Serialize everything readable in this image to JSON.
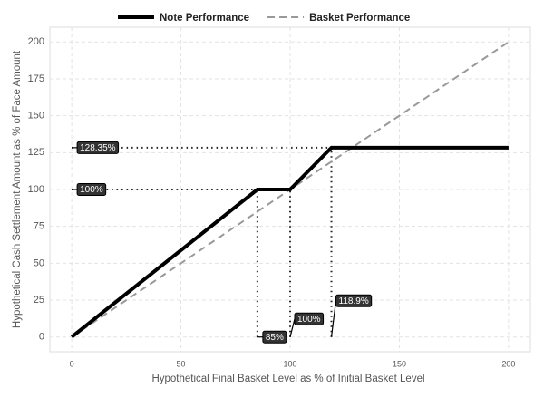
{
  "chart_data": {
    "type": "line",
    "xlabel": "Hypothetical Final Basket Level as % of Initial Basket Level",
    "ylabel": "Hypothetical Cash Settlement Amount as % of Face Amount",
    "series": [
      {
        "name": "Note Performance",
        "color": "#000000",
        "style": "solid",
        "x": [
          0,
          85,
          100,
          118.9,
          200
        ],
        "values": [
          0,
          100,
          100,
          128.35,
          128.35
        ]
      },
      {
        "name": "Basket Performance",
        "color": "#999999",
        "style": "dashed",
        "x": [
          0,
          200
        ],
        "values": [
          0,
          200
        ]
      }
    ],
    "annotations": [
      {
        "label": "128.35%",
        "x": 0,
        "y": 128.35
      },
      {
        "label": "100%",
        "x": 0,
        "y": 100
      },
      {
        "label": "85%",
        "x": 85,
        "y": 0
      },
      {
        "label": "100%",
        "x": 100,
        "y": 0
      },
      {
        "label": "118.9%",
        "x": 118.9,
        "y": 0
      }
    ],
    "xlim": [
      -10,
      210
    ],
    "ylim": [
      -10,
      210
    ],
    "xticks": [
      0,
      50,
      100,
      150,
      200
    ],
    "yticks": [
      0,
      25,
      50,
      75,
      100,
      125,
      150,
      175,
      200
    ],
    "grid": true,
    "legend": "top"
  }
}
